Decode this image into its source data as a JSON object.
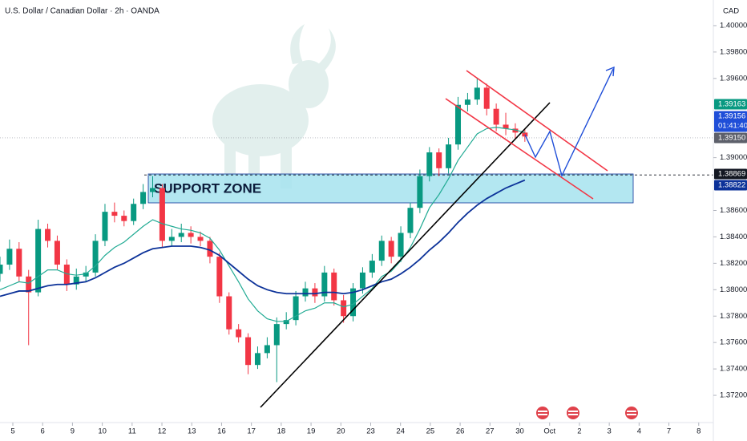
{
  "chart_data": {
    "type": "candlestick",
    "title": "U.S. Dollar / Canadian Dollar · 2h · OANDA",
    "currency": "CAD",
    "annotations": [
      "SUPPORT ZONE"
    ],
    "countdown": "01:41:40",
    "up_color": "#089981",
    "down_color": "#f23645",
    "x": [
      -0.43,
      -0.11,
      0.21,
      0.53,
      0.85,
      1.17,
      1.49,
      1.81,
      2.13,
      2.45,
      2.77,
      3.09,
      3.41,
      3.73,
      4.05,
      4.37,
      4.69,
      5.01,
      5.33,
      5.65,
      5.97,
      6.29,
      6.61,
      6.93,
      7.25,
      7.57,
      7.89,
      8.21,
      8.53,
      8.85,
      9.17,
      9.49,
      9.81,
      10.13,
      10.45,
      10.77,
      11.09,
      11.41,
      11.73,
      12.05,
      12.37,
      12.69,
      13.01,
      13.33,
      13.65,
      13.97,
      14.29,
      14.61,
      14.93,
      15.25,
      15.57,
      15.89,
      16.21,
      16.53,
      16.85,
      17.17
    ],
    "open": [
      1.3812,
      1.3819,
      1.3831,
      1.381,
      1.3798,
      1.3846,
      1.3837,
      1.3819,
      1.3804,
      1.381,
      1.3813,
      1.3837,
      1.3859,
      1.3856,
      1.3852,
      1.3865,
      1.3874,
      1.3877,
      1.3837,
      1.384,
      1.3843,
      1.384,
      1.3837,
      1.3825,
      1.3795,
      1.377,
      1.3764,
      1.3743,
      1.3752,
      1.3758,
      1.3774,
      1.3777,
      1.3795,
      1.3801,
      1.3795,
      1.3813,
      1.3792,
      1.378,
      1.3801,
      1.3813,
      1.3822,
      1.3837,
      1.3825,
      1.3843,
      1.3862,
      1.3886,
      1.3904,
      1.3892,
      1.391,
      1.394,
      1.3944,
      1.3953,
      1.3937,
      1.3925,
      1.3922,
      1.3919
    ],
    "high": [
      1.3825,
      1.3838,
      1.3836,
      1.3815,
      1.3853,
      1.385,
      1.3841,
      1.3823,
      1.3816,
      1.3818,
      1.3842,
      1.3865,
      1.3866,
      1.386,
      1.3869,
      1.388,
      1.3886,
      1.388,
      1.3846,
      1.385,
      1.3848,
      1.3844,
      1.384,
      1.3828,
      1.3798,
      1.3774,
      1.3767,
      1.3757,
      1.3764,
      1.3779,
      1.3783,
      1.3799,
      1.3806,
      1.3805,
      1.3818,
      1.3816,
      1.3796,
      1.3805,
      1.3817,
      1.3827,
      1.3841,
      1.384,
      1.3848,
      1.3866,
      1.3891,
      1.3908,
      1.3907,
      1.3915,
      1.3946,
      1.3949,
      1.396,
      1.3956,
      1.3941,
      1.3934,
      1.3926,
      1.3922
    ],
    "low": [
      1.3806,
      1.3815,
      1.3806,
      1.3758,
      1.3795,
      1.3832,
      1.3815,
      1.3799,
      1.38,
      1.3806,
      1.381,
      1.3833,
      1.3851,
      1.3848,
      1.3849,
      1.3861,
      1.387,
      1.3832,
      1.3833,
      1.3836,
      1.3835,
      1.3833,
      1.382,
      1.379,
      1.3766,
      1.376,
      1.3736,
      1.374,
      1.3748,
      1.373,
      1.377,
      1.3773,
      1.3791,
      1.379,
      1.3791,
      1.3788,
      1.3775,
      1.3776,
      1.3797,
      1.3809,
      1.3818,
      1.382,
      1.3821,
      1.3839,
      1.3858,
      1.3882,
      1.3886,
      1.3888,
      1.3906,
      1.3935,
      1.394,
      1.3932,
      1.392,
      1.3917,
      1.3914,
      1.3912
    ],
    "close": [
      1.3819,
      1.3831,
      1.381,
      1.3798,
      1.3846,
      1.3837,
      1.3819,
      1.3804,
      1.381,
      1.3813,
      1.3837,
      1.3859,
      1.3856,
      1.3852,
      1.3865,
      1.3874,
      1.3877,
      1.3837,
      1.384,
      1.3843,
      1.384,
      1.3837,
      1.3825,
      1.3795,
      1.377,
      1.3764,
      1.3743,
      1.3752,
      1.3758,
      1.3774,
      1.3777,
      1.3795,
      1.3801,
      1.3795,
      1.3813,
      1.3792,
      1.378,
      1.3801,
      1.3813,
      1.3822,
      1.3837,
      1.3825,
      1.3843,
      1.3862,
      1.3886,
      1.3904,
      1.3892,
      1.391,
      1.394,
      1.3944,
      1.3953,
      1.3937,
      1.3925,
      1.3922,
      1.3919,
      1.3916
    ],
    "lines": [
      {
        "color": "#22ab94",
        "values": [
          1.38,
          1.3803,
          1.3806,
          1.3805,
          1.381,
          1.3815,
          1.3815,
          1.3812,
          1.3811,
          1.3812,
          1.3818,
          1.3826,
          1.3832,
          1.3836,
          1.3842,
          1.3848,
          1.3853,
          1.385,
          1.3848,
          1.3846,
          1.3845,
          1.3843,
          1.3839,
          1.383,
          1.3818,
          1.3806,
          1.3793,
          1.3784,
          1.3778,
          1.3776,
          1.3776,
          1.378,
          1.3784,
          1.3786,
          1.379,
          1.379,
          1.3787,
          1.3789,
          1.3795,
          1.3801,
          1.381,
          1.3814,
          1.3822,
          1.3832,
          1.3846,
          1.3862,
          1.3872,
          1.3884,
          1.3898,
          1.3908,
          1.3918,
          1.3922,
          1.3923,
          1.3922,
          1.3921,
          1.3919
        ]
      },
      {
        "color": "#0c3299",
        "values": [
          1.3795,
          1.3797,
          1.3799,
          1.3799,
          1.3801,
          1.3803,
          1.3804,
          1.3804,
          1.3805,
          1.3806,
          1.3809,
          1.3813,
          1.3817,
          1.382,
          1.3824,
          1.3828,
          1.3831,
          1.3832,
          1.3833,
          1.3833,
          1.3833,
          1.3832,
          1.383,
          1.3826,
          1.382,
          1.3814,
          1.3808,
          1.3803,
          1.38,
          1.3798,
          1.3797,
          1.3797,
          1.3797,
          1.3797,
          1.3798,
          1.3798,
          1.3797,
          1.3798,
          1.38,
          1.3803,
          1.3806,
          1.3808,
          1.3812,
          1.3817,
          1.3823,
          1.383,
          1.3836,
          1.3843,
          1.3851,
          1.3858,
          1.3864,
          1.3869,
          1.3873,
          1.3877,
          1.388,
          1.3883
        ]
      }
    ],
    "xlim": [
      -0.43,
      23.49
    ],
    "xticks": [
      {
        "value": 0,
        "label": "5"
      },
      {
        "value": 1,
        "label": "6"
      },
      {
        "value": 2,
        "label": "9"
      },
      {
        "value": 3,
        "label": "10"
      },
      {
        "value": 4,
        "label": "11"
      },
      {
        "value": 5,
        "label": "12"
      },
      {
        "value": 6,
        "label": "13"
      },
      {
        "value": 7,
        "label": "16"
      },
      {
        "value": 8,
        "label": "17"
      },
      {
        "value": 9,
        "label": "18"
      },
      {
        "value": 10,
        "label": "19"
      },
      {
        "value": 11,
        "label": "20"
      },
      {
        "value": 12,
        "label": "23"
      },
      {
        "value": 13,
        "label": "24"
      },
      {
        "value": 14,
        "label": "25"
      },
      {
        "value": 15,
        "label": "26"
      },
      {
        "value": 16,
        "label": "27"
      },
      {
        "value": 17,
        "label": "30"
      },
      {
        "value": 18,
        "label": "Oct"
      },
      {
        "value": 19,
        "label": "2"
      },
      {
        "value": 20,
        "label": "3"
      },
      {
        "value": 21,
        "label": "4"
      },
      {
        "value": 22,
        "label": "7"
      },
      {
        "value": 23,
        "label": "8"
      }
    ],
    "ylim": [
      1.37006,
      1.40194
    ],
    "yticks": [
      {
        "value": 1.4,
        "label": "1.40000"
      },
      {
        "value": 1.398,
        "label": "1.39800"
      },
      {
        "value": 1.396,
        "label": "1.39600"
      },
      {
        "value": 1.39,
        "label": "1.39000"
      },
      {
        "value": 1.386,
        "label": "1.38600"
      },
      {
        "value": 1.384,
        "label": "1.38400"
      },
      {
        "value": 1.382,
        "label": "1.38200"
      },
      {
        "value": 1.38,
        "label": "1.38000"
      },
      {
        "value": 1.378,
        "label": "1.37800"
      },
      {
        "value": 1.376,
        "label": "1.37600"
      },
      {
        "value": 1.374,
        "label": "1.37400"
      },
      {
        "value": 1.372,
        "label": "1.37200"
      }
    ],
    "price_labels": [
      {
        "value": 1.39163,
        "label": "1.39163",
        "color": "#089981"
      },
      {
        "value": 1.39156,
        "label": "1.39156",
        "color": "#1f4ed8"
      },
      {
        "value": 1.3915,
        "label": "1.39150",
        "color": "#5d606b"
      },
      {
        "value": 1.38869,
        "label": "1.38869",
        "color": "#131722"
      },
      {
        "value": 1.38822,
        "label": "1.38822",
        "color": "#0c3299"
      }
    ]
  }
}
